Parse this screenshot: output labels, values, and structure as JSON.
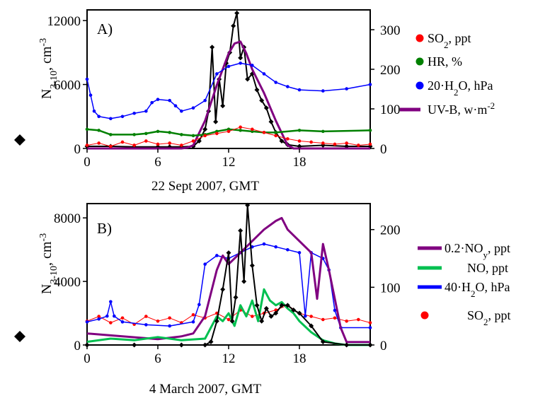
{
  "chart_data": [
    {
      "panel_label": "A)",
      "type": "line",
      "xlabel": "22 Sept 2007, GMT",
      "x_ticks": [
        0,
        6,
        12,
        18
      ],
      "xlim": [
        0,
        24
      ],
      "left_axis": {
        "label": "N",
        "label_sub": "3-10",
        "label_unit": ", cm",
        "label_sup": "-3",
        "ylim": [
          0,
          13000
        ],
        "ticks": [
          0,
          6000,
          12000
        ]
      },
      "right_axis": {
        "ylim": [
          0,
          350
        ],
        "ticks": [
          0,
          100,
          200,
          300
        ]
      },
      "legend": [
        {
          "marker": "dot",
          "color": "#ff0000",
          "text": "SO",
          "sub": "2",
          "tail": ", ppt"
        },
        {
          "marker": "dot",
          "color": "#008000",
          "text": "HR, %"
        },
        {
          "marker": "dot",
          "color": "#0000ff",
          "text": "20·H",
          "sub": "2",
          "tail": "O, hPa"
        },
        {
          "marker": "line",
          "color": "#800080",
          "text": "UV-B, w·m",
          "sup": "-2"
        }
      ],
      "series": [
        {
          "key": "N310",
          "axis": "left",
          "color": "#000000",
          "marker": "diamond",
          "width": 2,
          "x": [
            0,
            2,
            4,
            6,
            7,
            8,
            9,
            9.5,
            10,
            10.3,
            10.6,
            10.9,
            11.2,
            11.5,
            11.8,
            12.1,
            12.4,
            12.7,
            13.0,
            13.3,
            13.6,
            14,
            14.4,
            14.8,
            15.2,
            15.6,
            16,
            16.5,
            17,
            18,
            20,
            22,
            24
          ],
          "y": [
            200,
            200,
            150,
            150,
            150,
            150,
            200,
            700,
            1800,
            3500,
            9500,
            2500,
            6500,
            4000,
            8000,
            9000,
            11500,
            12700,
            8500,
            9500,
            6500,
            7000,
            5500,
            4500,
            3800,
            2500,
            1500,
            700,
            350,
            200,
            300,
            200,
            200
          ]
        },
        {
          "key": "UVB",
          "axis": "right",
          "color": "#800080",
          "width": 3,
          "x": [
            0,
            8,
            8.5,
            9,
            10,
            11,
            12,
            12.5,
            13,
            13.5,
            14,
            15,
            16,
            17,
            17.5,
            24
          ],
          "y": [
            0,
            0,
            2,
            8,
            70,
            160,
            240,
            265,
            270,
            240,
            200,
            140,
            70,
            8,
            0,
            0
          ]
        },
        {
          "key": "H2O",
          "axis": "left",
          "color": "#0000ff",
          "marker": "dot",
          "width": 1.5,
          "x": [
            0,
            0.3,
            0.6,
            1,
            2,
            3,
            4,
            5,
            5.5,
            6,
            7,
            7.5,
            8,
            9,
            10,
            11,
            12,
            13,
            14,
            15,
            16,
            17,
            18,
            20,
            22,
            24
          ],
          "y": [
            6500,
            5000,
            3500,
            3000,
            2800,
            3000,
            3300,
            3500,
            4300,
            4600,
            4500,
            4000,
            3500,
            3800,
            4500,
            7000,
            7700,
            8000,
            7800,
            7000,
            6200,
            5800,
            5500,
            5400,
            5600,
            6000
          ]
        },
        {
          "key": "HR",
          "axis": "left",
          "color": "#008000",
          "marker": "dot",
          "width": 2.5,
          "x": [
            0,
            1,
            2,
            4,
            5,
            6,
            7,
            8,
            9,
            10,
            11,
            12,
            13,
            14,
            15,
            16,
            18,
            20,
            24
          ],
          "y": [
            1800,
            1700,
            1300,
            1300,
            1400,
            1600,
            1500,
            1300,
            1200,
            1300,
            1600,
            1800,
            1700,
            1600,
            1500,
            1500,
            1700,
            1600,
            1700
          ]
        },
        {
          "key": "SO2",
          "axis": "left",
          "color": "#ff0000",
          "marker": "dot",
          "width": 1,
          "x": [
            0,
            1,
            2,
            3,
            4,
            5,
            6,
            7,
            8,
            9,
            10,
            11,
            12,
            13,
            14,
            15,
            16,
            17,
            18,
            19,
            20,
            21,
            22,
            23,
            24
          ],
          "y": [
            300,
            500,
            200,
            600,
            300,
            700,
            400,
            500,
            300,
            700,
            1200,
            1400,
            1600,
            2000,
            1800,
            1500,
            1200,
            900,
            700,
            600,
            500,
            400,
            500,
            300,
            400
          ]
        }
      ]
    },
    {
      "panel_label": "B)",
      "type": "line",
      "xlabel": "4 March 2007, GMT",
      "x_ticks": [
        0,
        6,
        12,
        18
      ],
      "xlim": [
        0,
        24
      ],
      "left_axis": {
        "label": "N",
        "label_sub": "3-10",
        "label_unit": ", cm",
        "label_sup": "-3",
        "ylim": [
          0,
          8900
        ],
        "ticks": [
          0,
          4000,
          8000
        ]
      },
      "right_axis": {
        "ylim": [
          0,
          245
        ],
        "ticks": [
          0,
          100,
          200
        ]
      },
      "legend": [
        {
          "marker": "line",
          "color": "#800080",
          "text": "0.2·NO",
          "sub": "y",
          "tail": ", ppt"
        },
        {
          "marker": "line",
          "color": "#00c050",
          "text": "NO,  ppt"
        },
        {
          "marker": "line",
          "color": "#0000ff",
          "text": "40·H",
          "sub": "2",
          "tail": "O, hPa"
        },
        {
          "marker": "dot",
          "color": "#ff0000",
          "text": "SO",
          "sub": "2",
          "tail": ", ppt"
        }
      ],
      "series": [
        {
          "key": "SO2",
          "axis": "left",
          "color": "#ff0000",
          "marker": "dot",
          "width": 1,
          "x": [
            0,
            1,
            2,
            3,
            4,
            5,
            6,
            7,
            8,
            9,
            10,
            11,
            12,
            13,
            14,
            15,
            16,
            17,
            18,
            19,
            20,
            21,
            22,
            23,
            24
          ],
          "y": [
            1500,
            1800,
            1400,
            1700,
            1300,
            1800,
            1500,
            1700,
            1400,
            1900,
            1700,
            2000,
            1600,
            2200,
            1800,
            2000,
            2200,
            2500,
            2000,
            1800,
            1600,
            1700,
            1500,
            1600,
            1400
          ]
        },
        {
          "key": "H2O",
          "axis": "right",
          "color": "#0000ff",
          "marker": "dot",
          "width": 1.5,
          "x": [
            0,
            1,
            1.7,
            2,
            2.3,
            3,
            5,
            7,
            9,
            9.5,
            10,
            11,
            12,
            13,
            14,
            15,
            16,
            17,
            18,
            18.5,
            19,
            20,
            20.5,
            21,
            21.5,
            24
          ],
          "y": [
            40,
            45,
            50,
            75,
            50,
            40,
            35,
            33,
            40,
            70,
            140,
            155,
            150,
            160,
            170,
            175,
            170,
            165,
            160,
            50,
            160,
            150,
            130,
            60,
            30,
            30
          ]
        },
        {
          "key": "NOy",
          "axis": "right",
          "color": "#800080",
          "width": 3,
          "x": [
            0,
            3,
            6,
            8,
            9,
            10,
            11,
            11.5,
            12,
            13,
            14,
            15,
            16,
            16.5,
            17,
            18,
            19,
            19.5,
            20,
            20.5,
            21,
            21.5,
            22,
            24
          ],
          "y": [
            20,
            15,
            10,
            15,
            20,
            50,
            130,
            155,
            140,
            160,
            180,
            200,
            215,
            220,
            200,
            180,
            160,
            80,
            175,
            130,
            80,
            30,
            5,
            5
          ]
        },
        {
          "key": "NO",
          "axis": "left",
          "color": "#00c050",
          "width": 3,
          "x": [
            0,
            2,
            4,
            6,
            8,
            10,
            11,
            11.5,
            12,
            12.5,
            13,
            13.5,
            14,
            14.5,
            15,
            15.5,
            16,
            16.5,
            17,
            17.5,
            18,
            19,
            20,
            21,
            22,
            24
          ],
          "y": [
            200,
            400,
            300,
            500,
            300,
            400,
            1800,
            1500,
            2000,
            1200,
            2500,
            1800,
            2800,
            1500,
            3500,
            2800,
            2500,
            2700,
            2300,
            2000,
            1500,
            800,
            300,
            100,
            0,
            0
          ]
        },
        {
          "key": "N310",
          "axis": "left",
          "color": "#000000",
          "marker": "diamond",
          "width": 2,
          "x": [
            0,
            4,
            8,
            10,
            10.5,
            11,
            11.5,
            12,
            12.3,
            12.6,
            13,
            13.3,
            13.6,
            14,
            14.4,
            14.8,
            15.2,
            15.6,
            16,
            16.5,
            17,
            17.5,
            18,
            19,
            20,
            22,
            24
          ],
          "y": [
            0,
            0,
            0,
            0,
            200,
            1500,
            3500,
            5800,
            1500,
            3000,
            7200,
            4000,
            8800,
            5000,
            2500,
            1500,
            2300,
            1800,
            2000,
            2500,
            2500,
            2200,
            2000,
            1200,
            200,
            0,
            0
          ]
        }
      ]
    }
  ]
}
